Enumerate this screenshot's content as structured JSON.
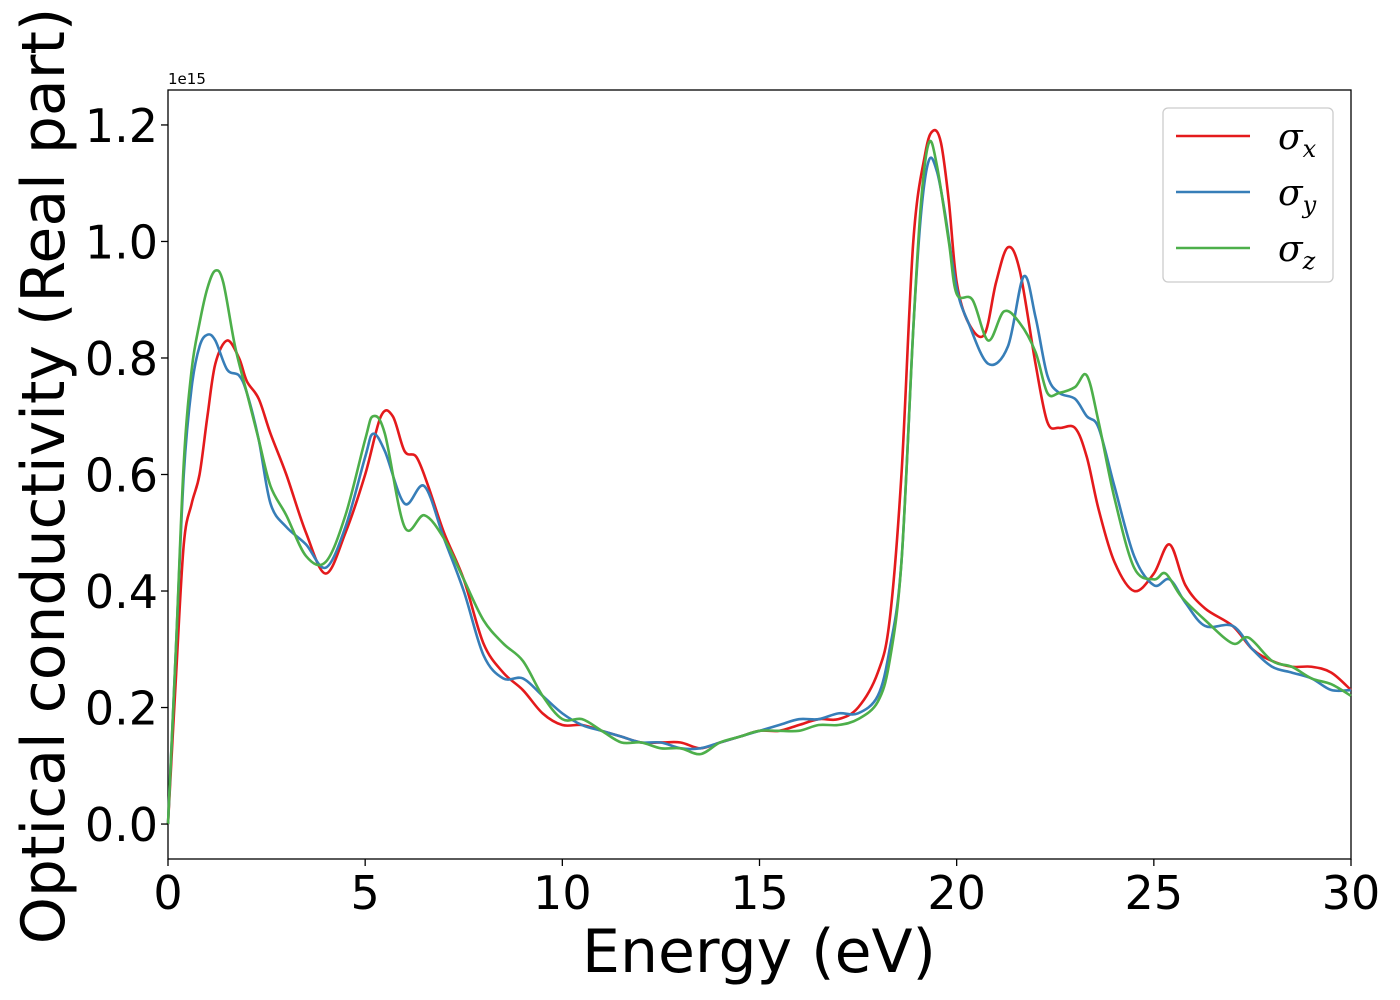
{
  "chart_data": {
    "type": "line",
    "title": "",
    "xlabel": "Energy (eV)",
    "ylabel": "Optical conductivity (Real part)",
    "y_offset_label": "1e15",
    "xlim": [
      0,
      30
    ],
    "ylim": [
      -0.06,
      1.26
    ],
    "xticks": [
      0,
      5,
      10,
      15,
      20,
      25,
      30
    ],
    "xtick_labels": [
      "0",
      "5",
      "10",
      "15",
      "20",
      "25",
      "30"
    ],
    "yticks": [
      0.0,
      0.2,
      0.4,
      0.6,
      0.8,
      1.0,
      1.2
    ],
    "ytick_labels": [
      "0.0",
      "0.2",
      "0.4",
      "0.6",
      "0.8",
      "1.0",
      "1.2"
    ],
    "grid": false,
    "legend_position": "top-right",
    "series": [
      {
        "name": "σx",
        "label_base": "σ",
        "label_sub": "x",
        "color": "#e41a1c",
        "x": [
          0,
          0.2,
          0.4,
          0.6,
          0.8,
          1.0,
          1.2,
          1.5,
          1.8,
          2.0,
          2.3,
          2.6,
          3.0,
          3.5,
          4.0,
          4.5,
          5.0,
          5.4,
          5.7,
          6.0,
          6.3,
          6.6,
          7.0,
          7.5,
          8.0,
          8.5,
          9.0,
          9.5,
          10.0,
          10.5,
          11.0,
          11.5,
          12.0,
          12.5,
          13.0,
          13.5,
          14.0,
          14.5,
          15.0,
          15.5,
          16.0,
          16.5,
          17.0,
          17.5,
          18.0,
          18.3,
          18.6,
          18.9,
          19.2,
          19.4,
          19.6,
          19.8,
          20.0,
          20.3,
          20.7,
          21.0,
          21.3,
          21.6,
          22.0,
          22.3,
          22.6,
          23.0,
          23.3,
          23.6,
          24.0,
          24.5,
          25.0,
          25.4,
          25.8,
          26.3,
          27.0,
          27.5,
          28.0,
          28.5,
          29.0,
          29.5,
          30.0
        ],
        "y": [
          0.0,
          0.25,
          0.48,
          0.55,
          0.6,
          0.7,
          0.79,
          0.83,
          0.8,
          0.76,
          0.73,
          0.67,
          0.6,
          0.5,
          0.43,
          0.5,
          0.6,
          0.7,
          0.7,
          0.64,
          0.63,
          0.58,
          0.5,
          0.42,
          0.31,
          0.26,
          0.23,
          0.19,
          0.17,
          0.17,
          0.16,
          0.15,
          0.14,
          0.14,
          0.14,
          0.13,
          0.14,
          0.15,
          0.16,
          0.16,
          0.17,
          0.18,
          0.18,
          0.2,
          0.26,
          0.35,
          0.6,
          1.0,
          1.15,
          1.19,
          1.17,
          1.07,
          0.93,
          0.86,
          0.84,
          0.93,
          0.99,
          0.95,
          0.79,
          0.69,
          0.68,
          0.68,
          0.63,
          0.54,
          0.45,
          0.4,
          0.43,
          0.48,
          0.41,
          0.37,
          0.34,
          0.3,
          0.28,
          0.27,
          0.27,
          0.26,
          0.23
        ]
      },
      {
        "name": "σy",
        "label_base": "σ",
        "label_sub": "y",
        "color": "#377eb8",
        "x": [
          0,
          0.2,
          0.4,
          0.6,
          0.8,
          1.0,
          1.2,
          1.5,
          1.8,
          2.0,
          2.3,
          2.6,
          3.0,
          3.5,
          4.0,
          4.5,
          5.0,
          5.2,
          5.5,
          6.0,
          6.5,
          7.0,
          7.5,
          8.0,
          8.5,
          9.0,
          9.5,
          10.0,
          10.5,
          11.0,
          11.5,
          12.0,
          12.5,
          13.0,
          13.5,
          14.0,
          14.5,
          15.0,
          15.5,
          16.0,
          16.5,
          17.0,
          17.5,
          18.0,
          18.3,
          18.6,
          18.9,
          19.1,
          19.3,
          19.5,
          19.7,
          20.0,
          20.3,
          20.8,
          21.3,
          21.7,
          22.0,
          22.3,
          22.6,
          23.0,
          23.3,
          23.6,
          24.0,
          24.5,
          25.0,
          25.4,
          25.8,
          26.3,
          27.0,
          27.5,
          28.0,
          28.5,
          29.0,
          29.5,
          30.0
        ],
        "y": [
          0.0,
          0.3,
          0.6,
          0.75,
          0.82,
          0.84,
          0.83,
          0.78,
          0.77,
          0.74,
          0.66,
          0.55,
          0.51,
          0.48,
          0.44,
          0.51,
          0.63,
          0.67,
          0.64,
          0.55,
          0.58,
          0.49,
          0.4,
          0.29,
          0.25,
          0.25,
          0.22,
          0.19,
          0.17,
          0.16,
          0.15,
          0.14,
          0.14,
          0.13,
          0.13,
          0.14,
          0.15,
          0.16,
          0.17,
          0.18,
          0.18,
          0.19,
          0.19,
          0.22,
          0.3,
          0.45,
          0.85,
          1.05,
          1.14,
          1.12,
          1.05,
          0.92,
          0.86,
          0.79,
          0.82,
          0.94,
          0.87,
          0.77,
          0.74,
          0.73,
          0.7,
          0.68,
          0.58,
          0.46,
          0.41,
          0.42,
          0.38,
          0.34,
          0.34,
          0.3,
          0.27,
          0.26,
          0.25,
          0.23,
          0.23
        ]
      },
      {
        "name": "σz",
        "label_base": "σ",
        "label_sub": "z",
        "color": "#4daf4a",
        "x": [
          0,
          0.2,
          0.4,
          0.6,
          0.8,
          1.0,
          1.2,
          1.4,
          1.7,
          2.0,
          2.3,
          2.6,
          3.0,
          3.5,
          4.0,
          4.5,
          5.0,
          5.2,
          5.5,
          6.0,
          6.5,
          7.0,
          7.5,
          8.0,
          8.5,
          9.0,
          9.5,
          10.0,
          10.5,
          11.0,
          11.5,
          12.0,
          12.5,
          13.0,
          13.5,
          14.0,
          14.5,
          15.0,
          15.5,
          16.0,
          16.5,
          17.0,
          17.5,
          18.0,
          18.3,
          18.6,
          18.9,
          19.1,
          19.3,
          19.5,
          19.8,
          20.0,
          20.4,
          20.8,
          21.2,
          21.6,
          22.0,
          22.3,
          22.6,
          23.0,
          23.3,
          23.6,
          24.0,
          24.5,
          25.0,
          25.3,
          25.7,
          26.3,
          27.0,
          27.4,
          28.0,
          28.5,
          29.0,
          29.5,
          30.0
        ],
        "y": [
          0.0,
          0.3,
          0.62,
          0.78,
          0.86,
          0.92,
          0.95,
          0.93,
          0.82,
          0.74,
          0.66,
          0.58,
          0.53,
          0.46,
          0.45,
          0.53,
          0.66,
          0.7,
          0.67,
          0.51,
          0.53,
          0.49,
          0.42,
          0.35,
          0.31,
          0.28,
          0.22,
          0.18,
          0.18,
          0.16,
          0.14,
          0.14,
          0.13,
          0.13,
          0.12,
          0.14,
          0.15,
          0.16,
          0.16,
          0.16,
          0.17,
          0.17,
          0.18,
          0.21,
          0.28,
          0.45,
          0.85,
          1.07,
          1.17,
          1.13,
          1.0,
          0.91,
          0.9,
          0.83,
          0.88,
          0.86,
          0.81,
          0.74,
          0.74,
          0.75,
          0.77,
          0.69,
          0.56,
          0.44,
          0.42,
          0.43,
          0.39,
          0.35,
          0.31,
          0.32,
          0.28,
          0.27,
          0.25,
          0.24,
          0.22
        ]
      }
    ]
  }
}
